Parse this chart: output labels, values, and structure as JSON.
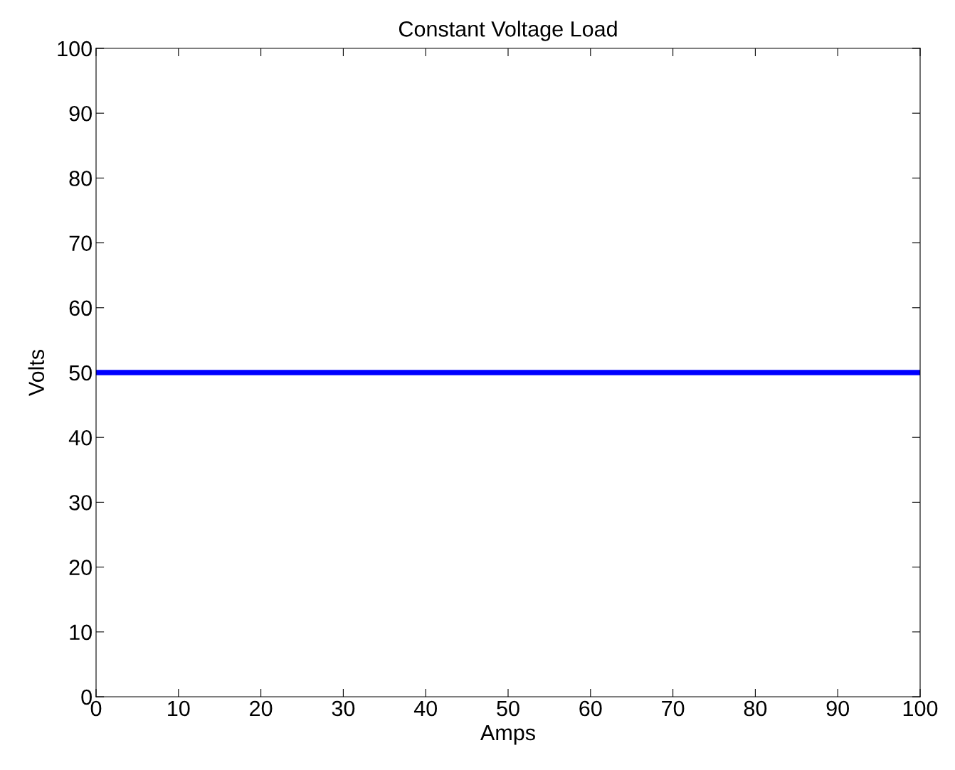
{
  "chart_data": {
    "type": "line",
    "title": "Constant Voltage Load",
    "xlabel": "Amps",
    "ylabel": "Volts",
    "series": [
      {
        "color": "#0000ff",
        "x": [
          0,
          100
        ],
        "values": [
          50,
          50
        ]
      }
    ],
    "xlim": [
      0,
      100
    ],
    "ylim": [
      0,
      100
    ],
    "xticks": [
      0,
      10,
      20,
      30,
      40,
      50,
      60,
      70,
      80,
      90,
      100
    ],
    "yticks": [
      0,
      10,
      20,
      30,
      40,
      50,
      60,
      70,
      80,
      90,
      100
    ],
    "grid": false,
    "legend": false,
    "marker": "none",
    "line_style": "solid"
  }
}
